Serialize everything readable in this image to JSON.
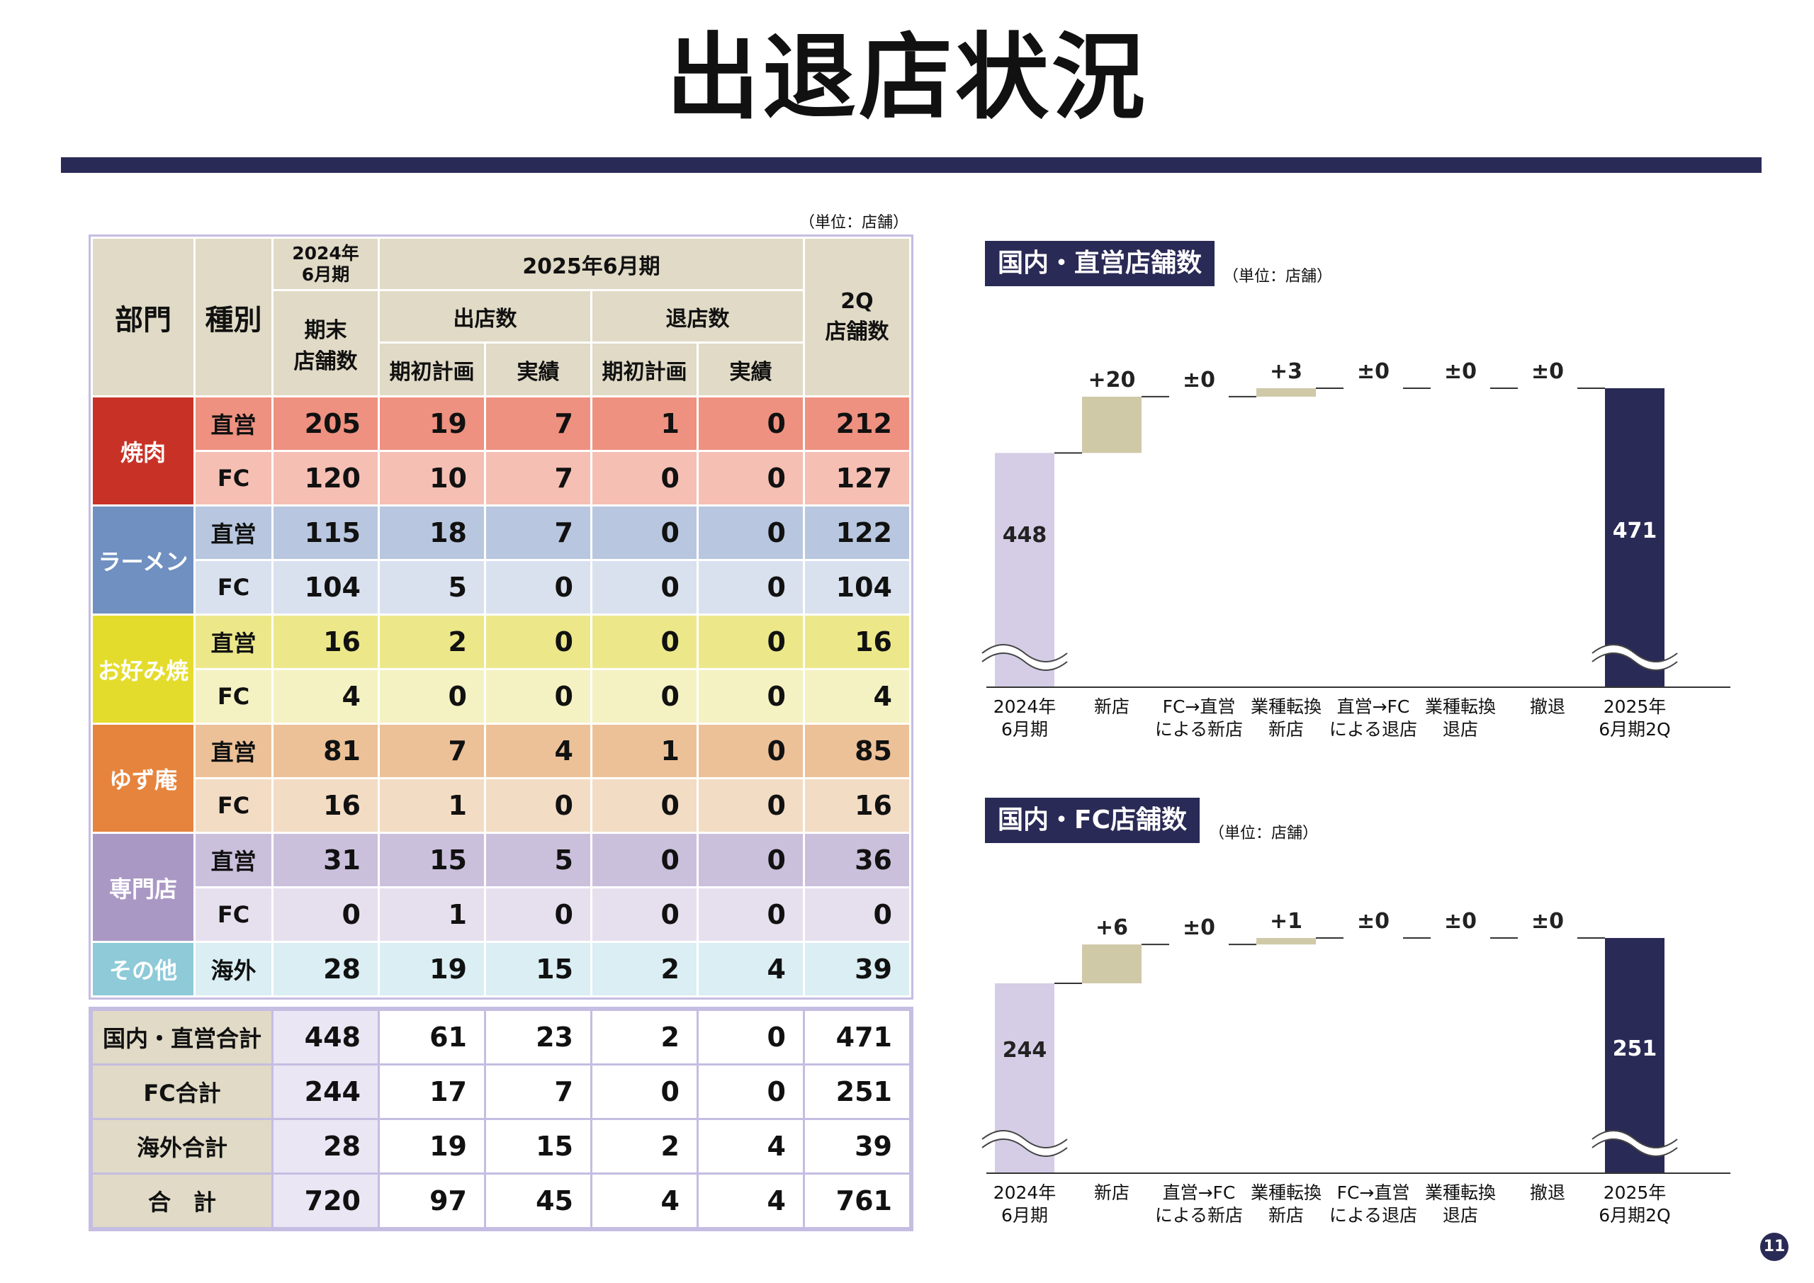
{
  "page": {
    "title": "出退店状況",
    "page_number": "11"
  },
  "table": {
    "unit": "（単位：店舗）",
    "headers": {
      "dept": "部門",
      "kind": "種別",
      "prev_period": "2024年\n6月期",
      "prev_sub": "期末\n店舗数",
      "period": "2025年6月期",
      "open": "出店数",
      "close": "退店数",
      "plan": "期初計画",
      "actual": "実績",
      "q2": "2Q\n店舗数"
    },
    "departments": [
      {
        "name": "焼肉",
        "color": "#c83226",
        "rows": [
          {
            "kind": "直営",
            "values": [
              "205",
              "19",
              "7",
              "1",
              "0",
              "212"
            ],
            "bg": "#ee9180",
            "kbg": "#ee9180"
          },
          {
            "kind": "FC",
            "values": [
              "120",
              "10",
              "7",
              "0",
              "0",
              "127"
            ],
            "bg": "#f5bfb4",
            "kbg": "#f5bfb4"
          }
        ]
      },
      {
        "name": "ラーメン",
        "color": "#6f90c0",
        "rows": [
          {
            "kind": "直営",
            "values": [
              "115",
              "18",
              "7",
              "0",
              "0",
              "122"
            ],
            "bg": "#b8c7df",
            "kbg": "#b8c7df"
          },
          {
            "kind": "FC",
            "values": [
              "104",
              "5",
              "0",
              "0",
              "0",
              "104"
            ],
            "bg": "#d9e1ef",
            "kbg": "#d9e1ef"
          }
        ]
      },
      {
        "name": "お好み焼",
        "color": "#e4dc2c",
        "rows": [
          {
            "kind": "直営",
            "values": [
              "16",
              "2",
              "0",
              "0",
              "0",
              "16"
            ],
            "bg": "#ece88a",
            "kbg": "#ece88a"
          },
          {
            "kind": "FC",
            "values": [
              "4",
              "0",
              "0",
              "0",
              "0",
              "4"
            ],
            "bg": "#f4f2c2",
            "kbg": "#f4f2c2"
          }
        ]
      },
      {
        "name": "ゆず庵",
        "color": "#e6843e",
        "rows": [
          {
            "kind": "直営",
            "values": [
              "81",
              "7",
              "4",
              "1",
              "0",
              "85"
            ],
            "bg": "#ecc198",
            "kbg": "#ecc198"
          },
          {
            "kind": "FC",
            "values": [
              "16",
              "1",
              "0",
              "0",
              "0",
              "16"
            ],
            "bg": "#f3dcc4",
            "kbg": "#f3dcc4"
          }
        ]
      },
      {
        "name": "専門店",
        "color": "#aa98c4",
        "rows": [
          {
            "kind": "直営",
            "values": [
              "31",
              "15",
              "5",
              "0",
              "0",
              "36"
            ],
            "bg": "#cbc0dc",
            "kbg": "#cbc0dc"
          },
          {
            "kind": "FC",
            "values": [
              "0",
              "1",
              "0",
              "0",
              "0",
              "0"
            ],
            "bg": "#e6e0ee",
            "kbg": "#e6e0ee"
          }
        ]
      },
      {
        "name": "その他",
        "color": "#8ecad8",
        "rows": [
          {
            "kind": "海外",
            "values": [
              "28",
              "19",
              "15",
              "2",
              "4",
              "39"
            ],
            "bg": "#daeef4",
            "kbg": "#daeef4"
          }
        ]
      }
    ],
    "totals": [
      {
        "label": "国内・直営合計",
        "values": [
          "448",
          "61",
          "23",
          "2",
          "0",
          "471"
        ]
      },
      {
        "label": "FC合計",
        "values": [
          "244",
          "17",
          "7",
          "0",
          "0",
          "251"
        ]
      },
      {
        "label": "海外合計",
        "values": [
          "28",
          "19",
          "15",
          "2",
          "4",
          "39"
        ]
      },
      {
        "label": "合　計",
        "values": [
          "720",
          "97",
          "45",
          "4",
          "4",
          "761"
        ]
      }
    ]
  },
  "chart_data": [
    {
      "type": "waterfall",
      "title": "国内・直営店舗数",
      "unit": "（単位：店舗）",
      "categories": [
        "2024年\n6月期",
        "新店",
        "FC→直営\nによる新店",
        "業種転換\n新店",
        "直営→FC\nによる退店",
        "業種転換\n退店",
        "撤退",
        "2025年\n6月期2Q"
      ],
      "values": [
        448,
        20,
        0,
        3,
        0,
        0,
        0,
        471
      ],
      "labels": [
        "448",
        "+20",
        "±0",
        "+3",
        "±0",
        "±0",
        "±0",
        "471"
      ],
      "axis_break": true,
      "colors": {
        "start": "#d5cde6",
        "step": "#cfc9a8",
        "end": "#2a2a56"
      }
    },
    {
      "type": "waterfall",
      "title": "国内・FC店舗数",
      "unit": "（単位：店舗）",
      "categories": [
        "2024年\n6月期",
        "新店",
        "直営→FC\nによる新店",
        "業種転換\n新店",
        "FC→直営\nによる退店",
        "業種転換\n退店",
        "撤退",
        "2025年\n6月期2Q"
      ],
      "values": [
        244,
        6,
        0,
        1,
        0,
        0,
        0,
        251
      ],
      "labels": [
        "244",
        "+6",
        "±0",
        "+1",
        "±0",
        "±0",
        "±0",
        "251"
      ],
      "axis_break": true,
      "colors": {
        "start": "#d5cde6",
        "step": "#cfc9a8",
        "end": "#2a2a56"
      }
    }
  ]
}
